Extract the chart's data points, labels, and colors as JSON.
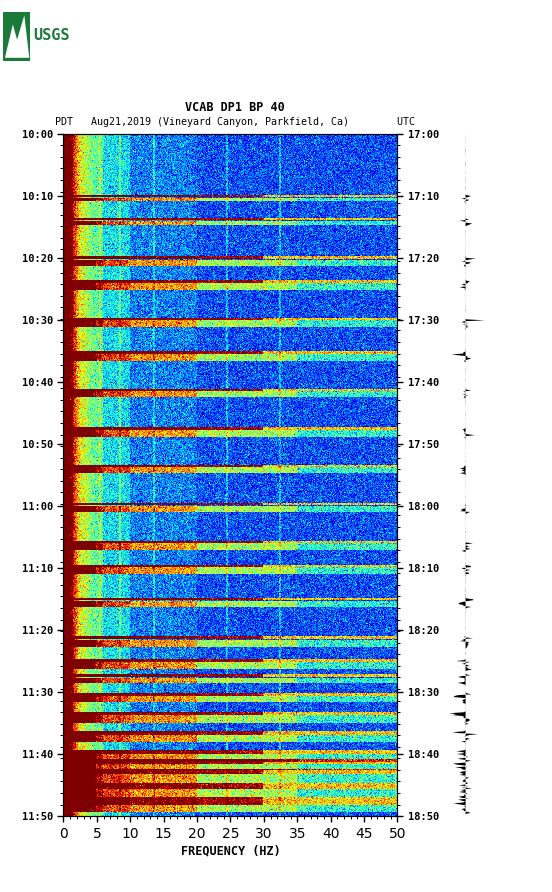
{
  "title_line1": "VCAB DP1 BP 40",
  "title_line2": "PDT   Aug21,2019 (Vineyard Canyon, Parkfield, Ca)        UTC",
  "xlabel": "FREQUENCY (HZ)",
  "freq_min": 0,
  "freq_max": 50,
  "time_labels_left": [
    "10:00",
    "10:10",
    "10:20",
    "10:30",
    "10:40",
    "10:50",
    "11:00",
    "11:10",
    "11:20",
    "11:30",
    "11:40",
    "11:50"
  ],
  "time_labels_right": [
    "17:00",
    "17:10",
    "17:20",
    "17:30",
    "17:40",
    "17:50",
    "18:00",
    "18:10",
    "18:20",
    "18:30",
    "18:40",
    "18:50"
  ],
  "n_time_steps": 720,
  "n_freq_steps": 500,
  "background_color": "#ffffff",
  "spec_cmap": "jet",
  "seed": 42,
  "dark_event_rows": [
    [
      65,
      67
    ],
    [
      90,
      92
    ],
    [
      130,
      133
    ],
    [
      155,
      158
    ],
    [
      195,
      197
    ],
    [
      230,
      233
    ],
    [
      270,
      272
    ],
    [
      310,
      313
    ],
    [
      350,
      352
    ],
    [
      390,
      392
    ],
    [
      430,
      432
    ],
    [
      455,
      458
    ],
    [
      490,
      492
    ],
    [
      530,
      533
    ],
    [
      555,
      558
    ],
    [
      570,
      573
    ],
    [
      590,
      594
    ],
    [
      610,
      614
    ],
    [
      630,
      635
    ],
    [
      650,
      655
    ],
    [
      660,
      665
    ],
    [
      670,
      676
    ],
    [
      685,
      692
    ],
    [
      700,
      708
    ]
  ],
  "bright_event_rows": [
    [
      68,
      72
    ],
    [
      93,
      97
    ],
    [
      134,
      140
    ],
    [
      158,
      165
    ],
    [
      197,
      205
    ],
    [
      233,
      240
    ],
    [
      272,
      278
    ],
    [
      313,
      320
    ],
    [
      352,
      358
    ],
    [
      393,
      400
    ],
    [
      432,
      440
    ],
    [
      458,
      465
    ],
    [
      493,
      500
    ],
    [
      534,
      542
    ],
    [
      558,
      565
    ],
    [
      574,
      580
    ],
    [
      594,
      600
    ],
    [
      614,
      622
    ],
    [
      635,
      642
    ],
    [
      655,
      663
    ],
    [
      665,
      672
    ],
    [
      676,
      685
    ],
    [
      692,
      700
    ],
    [
      708,
      716
    ]
  ],
  "vertical_lines_freq": [
    5.5,
    8.5,
    13.5,
    24.5,
    32.5
  ],
  "waveform_seed": 123
}
